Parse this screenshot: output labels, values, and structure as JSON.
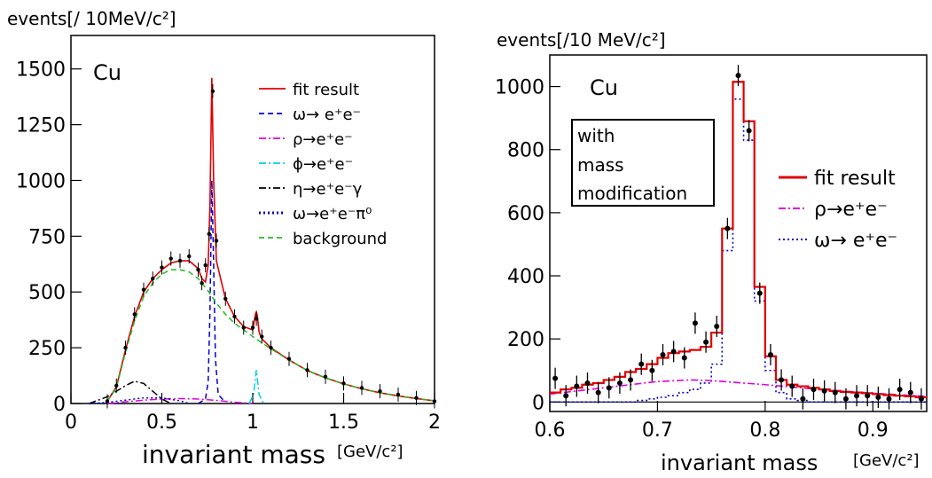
{
  "chart_data": [
    {
      "type": "line",
      "ylabel": "events[/ 10MeV/c²]",
      "xlabel": "invariant mass",
      "xunit": "[GeV/c²]",
      "tag": "Cu",
      "xlim": [
        0,
        2
      ],
      "ylim": [
        0,
        1650
      ],
      "xticks": [
        "0",
        "0.5",
        "1",
        "1.5",
        "2"
      ],
      "yticks": [
        "0",
        "250",
        "500",
        "750",
        "1000",
        "1250",
        "1500"
      ],
      "legend_position": "top-right",
      "legend": [
        {
          "label": "fit result",
          "color": "#e00000",
          "dash": "solid"
        },
        {
          "label": "ω→ e⁺e⁻",
          "color": "#0000cc",
          "dash": "dash"
        },
        {
          "label": "ρ→e⁺e⁻",
          "color": "#e000e0",
          "dash": "dashdot"
        },
        {
          "label": "ϕ→e⁺e⁻",
          "color": "#00d0e0",
          "dash": "dashdot"
        },
        {
          "label": "η→e⁺e⁻γ",
          "color": "#000000",
          "dash": "dashdot"
        },
        {
          "label": "ω→e⁺e⁻π⁰",
          "color": "#0000cc",
          "dash": "dotted"
        },
        {
          "label": "background",
          "color": "#22bb22",
          "dash": "dash"
        }
      ],
      "series": [
        {
          "name": "data",
          "x": [
            0.2,
            0.25,
            0.3,
            0.35,
            0.4,
            0.45,
            0.5,
            0.55,
            0.6,
            0.65,
            0.7,
            0.72,
            0.74,
            0.76,
            0.78,
            0.8,
            0.85,
            0.9,
            0.95,
            1.0,
            1.02,
            1.05,
            1.1,
            1.2,
            1.3,
            1.4,
            1.5,
            1.6,
            1.7,
            1.8,
            1.9,
            2.0
          ],
          "y": [
            10,
            80,
            250,
            400,
            510,
            560,
            610,
            650,
            640,
            660,
            600,
            540,
            620,
            760,
            1400,
            730,
            470,
            390,
            340,
            340,
            380,
            300,
            250,
            200,
            150,
            120,
            90,
            70,
            55,
            40,
            25,
            10
          ]
        },
        {
          "name": "fit result",
          "x": [
            0.2,
            0.25,
            0.3,
            0.35,
            0.4,
            0.45,
            0.5,
            0.55,
            0.6,
            0.65,
            0.7,
            0.72,
            0.74,
            0.755,
            0.765,
            0.775,
            0.785,
            0.8,
            0.85,
            0.9,
            0.95,
            1.0,
            1.015,
            1.02,
            1.025,
            1.035,
            1.05,
            1.1,
            1.2,
            1.3,
            1.4,
            1.5,
            1.6,
            1.7,
            1.8,
            1.9,
            2.0
          ],
          "y": [
            10,
            75,
            240,
            390,
            500,
            560,
            600,
            630,
            640,
            640,
            605,
            560,
            545,
            620,
            900,
            1460,
            1000,
            640,
            470,
            390,
            345,
            330,
            400,
            410,
            395,
            320,
            290,
            250,
            195,
            148,
            115,
            88,
            66,
            48,
            34,
            22,
            12
          ]
        },
        {
          "name": "ω→ e⁺e⁻",
          "x": [
            0.7,
            0.74,
            0.755,
            0.765,
            0.775,
            0.785,
            0.795,
            0.81,
            0.85
          ],
          "y": [
            0,
            20,
            100,
            420,
            1000,
            620,
            200,
            40,
            5
          ]
        },
        {
          "name": "ρ→e⁺e⁻",
          "x": [
            0.2,
            0.4,
            0.5,
            0.6,
            0.7,
            0.8,
            0.9,
            1.0
          ],
          "y": [
            0,
            15,
            20,
            22,
            20,
            14,
            6,
            0
          ]
        },
        {
          "name": "ϕ→e⁺e⁻",
          "x": [
            0.98,
            1.005,
            1.015,
            1.02,
            1.025,
            1.035,
            1.06
          ],
          "y": [
            0,
            40,
            120,
            150,
            115,
            40,
            0
          ]
        },
        {
          "name": "η→e⁺e⁻γ",
          "x": [
            0.1,
            0.2,
            0.3,
            0.35,
            0.4,
            0.45,
            0.5,
            0.55
          ],
          "y": [
            0,
            30,
            80,
            100,
            90,
            55,
            20,
            0
          ]
        },
        {
          "name": "ω→e⁺e⁻π⁰",
          "x": [
            0.1,
            0.2,
            0.3,
            0.4,
            0.5,
            0.6,
            0.65
          ],
          "y": [
            0,
            5,
            15,
            25,
            25,
            12,
            0
          ]
        },
        {
          "name": "background",
          "x": [
            0.2,
            0.25,
            0.3,
            0.35,
            0.4,
            0.45,
            0.5,
            0.55,
            0.6,
            0.65,
            0.7,
            0.75,
            0.8,
            0.85,
            0.9,
            0.95,
            1.0,
            1.1,
            1.2,
            1.3,
            1.4,
            1.5,
            1.6,
            1.7,
            1.8,
            1.9,
            2.0
          ],
          "y": [
            10,
            70,
            230,
            370,
            480,
            540,
            580,
            600,
            600,
            590,
            560,
            510,
            450,
            400,
            360,
            330,
            300,
            245,
            195,
            148,
            115,
            88,
            66,
            48,
            34,
            22,
            12
          ]
        }
      ]
    },
    {
      "type": "bar",
      "ylabel": "events[/10 MeV/c²]",
      "xlabel": "invariant mass",
      "xunit": "[GeV/c²]",
      "tag": "Cu",
      "box_text": [
        "with",
        "mass",
        "modification"
      ],
      "xlim": [
        0.6,
        0.95
      ],
      "ylim": [
        -30,
        1100
      ],
      "xticks": [
        "0.6",
        "0.7",
        "0.8",
        "0.9"
      ],
      "yticks": [
        "0",
        "200",
        "400",
        "600",
        "800",
        "1000"
      ],
      "legend_position": "right",
      "legend": [
        {
          "label": "fit result",
          "color": "#e00000",
          "dash": "solid"
        },
        {
          "label": "ρ→e⁺e⁻",
          "color": "#e000e0",
          "dash": "dashdot"
        },
        {
          "label": "ω→ e⁺e⁻",
          "color": "#0000cc",
          "dash": "dotted"
        }
      ],
      "bin_edges": [
        0.6,
        0.61,
        0.62,
        0.63,
        0.64,
        0.65,
        0.66,
        0.67,
        0.68,
        0.69,
        0.7,
        0.71,
        0.72,
        0.73,
        0.74,
        0.75,
        0.76,
        0.77,
        0.78,
        0.79,
        0.8,
        0.81,
        0.82,
        0.83,
        0.84,
        0.85,
        0.86,
        0.87,
        0.88,
        0.89,
        0.9,
        0.91,
        0.92,
        0.93,
        0.94,
        0.95
      ],
      "series": [
        {
          "name": "fit result",
          "values": [
            30,
            40,
            45,
            55,
            60,
            70,
            80,
            95,
            105,
            120,
            140,
            155,
            160,
            165,
            175,
            220,
            550,
            1015,
            890,
            365,
            145,
            70,
            55,
            50,
            45,
            40,
            35,
            32,
            30,
            28,
            25,
            22,
            20,
            18,
            15
          ]
        },
        {
          "name": "ω→ e⁺e⁻",
          "values": [
            0,
            0,
            0,
            0,
            0,
            0,
            0,
            0,
            5,
            10,
            15,
            20,
            30,
            40,
            60,
            120,
            480,
            960,
            830,
            320,
            100,
            30,
            10,
            5,
            0,
            0,
            0,
            0,
            0,
            0,
            0,
            0,
            0,
            0,
            0
          ]
        },
        {
          "name": "ρ→e⁺e⁻",
          "x": [
            0.6,
            0.65,
            0.7,
            0.73,
            0.75,
            0.8,
            0.85,
            0.9,
            0.95
          ],
          "values": [
            25,
            45,
            65,
            70,
            68,
            55,
            40,
            28,
            18
          ]
        },
        {
          "name": "data",
          "x": [
            0.605,
            0.615,
            0.625,
            0.635,
            0.645,
            0.655,
            0.665,
            0.675,
            0.685,
            0.695,
            0.705,
            0.715,
            0.725,
            0.735,
            0.745,
            0.755,
            0.765,
            0.775,
            0.785,
            0.795,
            0.805,
            0.815,
            0.825,
            0.835,
            0.845,
            0.855,
            0.865,
            0.875,
            0.885,
            0.895,
            0.905,
            0.915,
            0.925,
            0.935,
            0.945
          ],
          "values": [
            75,
            20,
            50,
            60,
            30,
            45,
            60,
            70,
            120,
            100,
            150,
            160,
            140,
            250,
            190,
            240,
            550,
            1035,
            860,
            345,
            150,
            70,
            50,
            10,
            40,
            35,
            30,
            10,
            20,
            20,
            15,
            10,
            40,
            30,
            10
          ]
        }
      ]
    }
  ]
}
